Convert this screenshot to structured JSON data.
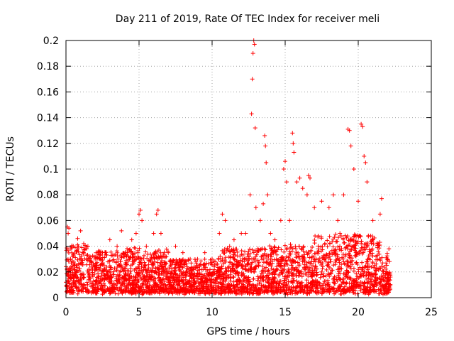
{
  "chart_data": {
    "type": "scatter",
    "title": "Day 211 of 2019, Rate Of TEC Index for receiver meli",
    "xlabel": "GPS time / hours",
    "ylabel": "ROTI / TECUs",
    "xlim": [
      0,
      25
    ],
    "ylim": [
      0,
      0.2
    ],
    "xticks": [
      "0",
      "5",
      "10",
      "15",
      "20",
      "25"
    ],
    "yticks": [
      "0",
      "0.02",
      "0.04",
      "0.06",
      "0.08",
      "0.1",
      "0.12",
      "0.14",
      "0.16",
      "0.18",
      "0.2"
    ],
    "grid": true,
    "marker": "+",
    "color": "#ff0000",
    "series": [
      {
        "name": "ROTI",
        "points": [
          [
            0.0,
            0.012
          ],
          [
            0.1,
            0.055
          ],
          [
            0.15,
            0.05
          ],
          [
            0.2,
            0.054
          ],
          [
            0.3,
            0.03
          ],
          [
            0.5,
            0.04
          ],
          [
            0.8,
            0.046
          ],
          [
            1.0,
            0.052
          ],
          [
            1.2,
            0.035
          ],
          [
            1.5,
            0.04
          ],
          [
            2.0,
            0.03
          ],
          [
            2.5,
            0.035
          ],
          [
            3.0,
            0.045
          ],
          [
            3.5,
            0.04
          ],
          [
            3.8,
            0.052
          ],
          [
            4.2,
            0.035
          ],
          [
            4.5,
            0.045
          ],
          [
            4.8,
            0.05
          ],
          [
            5.0,
            0.065
          ],
          [
            5.1,
            0.068
          ],
          [
            5.2,
            0.06
          ],
          [
            5.5,
            0.04
          ],
          [
            6.0,
            0.05
          ],
          [
            6.2,
            0.065
          ],
          [
            6.3,
            0.068
          ],
          [
            6.5,
            0.05
          ],
          [
            7.0,
            0.035
          ],
          [
            7.5,
            0.04
          ],
          [
            8.0,
            0.035
          ],
          [
            8.5,
            0.03
          ],
          [
            9.0,
            0.03
          ],
          [
            9.5,
            0.035
          ],
          [
            10.0,
            0.03
          ],
          [
            10.5,
            0.05
          ],
          [
            10.7,
            0.065
          ],
          [
            10.9,
            0.06
          ],
          [
            11.2,
            0.04
          ],
          [
            11.5,
            0.045
          ],
          [
            12.0,
            0.05
          ],
          [
            12.3,
            0.05
          ],
          [
            12.6,
            0.08
          ],
          [
            12.7,
            0.143
          ],
          [
            12.75,
            0.17
          ],
          [
            12.8,
            0.19
          ],
          [
            12.85,
            0.2
          ],
          [
            12.9,
            0.197
          ],
          [
            12.95,
            0.132
          ],
          [
            13.0,
            0.07
          ],
          [
            13.3,
            0.06
          ],
          [
            13.5,
            0.073
          ],
          [
            13.6,
            0.126
          ],
          [
            13.65,
            0.118
          ],
          [
            13.7,
            0.105
          ],
          [
            13.8,
            0.08
          ],
          [
            14.0,
            0.05
          ],
          [
            14.3,
            0.045
          ],
          [
            14.7,
            0.06
          ],
          [
            14.9,
            0.1
          ],
          [
            15.0,
            0.106
          ],
          [
            15.1,
            0.09
          ],
          [
            15.3,
            0.06
          ],
          [
            15.5,
            0.128
          ],
          [
            15.55,
            0.12
          ],
          [
            15.6,
            0.113
          ],
          [
            15.8,
            0.09
          ],
          [
            16.0,
            0.093
          ],
          [
            16.2,
            0.085
          ],
          [
            16.5,
            0.08
          ],
          [
            16.6,
            0.095
          ],
          [
            16.7,
            0.093
          ],
          [
            17.0,
            0.07
          ],
          [
            17.5,
            0.075
          ],
          [
            18.0,
            0.07
          ],
          [
            18.3,
            0.08
          ],
          [
            18.6,
            0.06
          ],
          [
            19.0,
            0.08
          ],
          [
            19.3,
            0.131
          ],
          [
            19.4,
            0.13
          ],
          [
            19.5,
            0.118
          ],
          [
            19.7,
            0.1
          ],
          [
            20.0,
            0.075
          ],
          [
            20.2,
            0.135
          ],
          [
            20.3,
            0.133
          ],
          [
            20.4,
            0.11
          ],
          [
            20.5,
            0.105
          ],
          [
            20.6,
            0.09
          ],
          [
            21.0,
            0.06
          ],
          [
            21.5,
            0.065
          ],
          [
            21.6,
            0.077
          ],
          [
            22.0,
            0.03
          ],
          [
            22.1,
            0.038
          ],
          [
            22.2,
            0.016
          ]
        ]
      }
    ]
  }
}
